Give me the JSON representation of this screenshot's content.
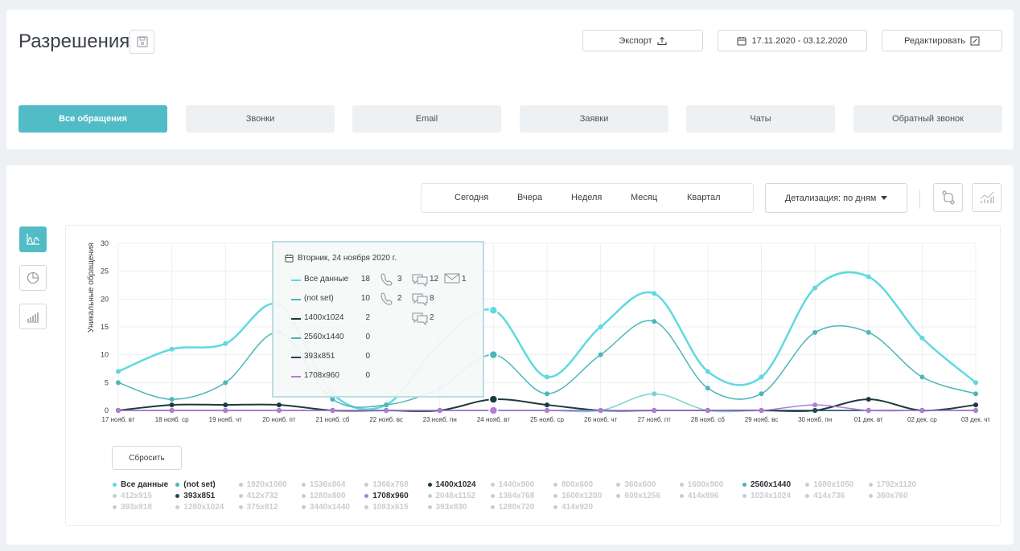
{
  "header": {
    "title": "Разрешения",
    "export_label": "Экспорт",
    "date_range": "17.11.2020 - 03.12.2020",
    "edit_label": "Редактировать"
  },
  "tabs": [
    {
      "label": "Все обращения",
      "active": true
    },
    {
      "label": "Звонки"
    },
    {
      "label": "Email"
    },
    {
      "label": "Заявки"
    },
    {
      "label": "Чаты"
    },
    {
      "label": "Обратный звонок"
    }
  ],
  "periods": [
    "Сегодня",
    "Вчера",
    "Неделя",
    "Месяц",
    "Квартал"
  ],
  "detail_dropdown": "Детализация: по дням",
  "reset_label": "Сбросить",
  "tooltip": {
    "date": "Вторник, 24 ноября 2020 г.",
    "rows": [
      {
        "label": "Все данные",
        "value": "18",
        "calls": "3",
        "chats": "12",
        "emails": "1",
        "color": "#5fd9e0"
      },
      {
        "label": "(not set)",
        "value": "10",
        "calls": "2",
        "chats": "8",
        "color": "#4cb6bb"
      },
      {
        "label": "1400x1024",
        "value": "2",
        "chats": "2",
        "color": "#1c3a40"
      },
      {
        "label": "2560x1440",
        "value": "0",
        "color": "#49b1b6"
      },
      {
        "label": "393x851",
        "value": "0",
        "color": "#1a4a55"
      },
      {
        "label": "1708x960",
        "value": "0",
        "color": "#b57ad9"
      }
    ]
  },
  "legend": [
    {
      "label": "Все данные",
      "active": true,
      "color": "#5fd9e0"
    },
    {
      "label": "(not set)",
      "active": true,
      "color": "#4cb6bb"
    },
    {
      "label": "1920x1080"
    },
    {
      "label": "1536x864"
    },
    {
      "label": "1366x768"
    },
    {
      "label": "1400x1024",
      "active": true,
      "color": "#1c3a40"
    },
    {
      "label": "1440x900"
    },
    {
      "label": "800x600"
    },
    {
      "label": "360x600"
    },
    {
      "label": "1600x900"
    },
    {
      "label": "2560x1440",
      "active": true,
      "color": "#49b1b6"
    },
    {
      "label": "1680x1050"
    },
    {
      "label": "1792x1120"
    },
    {
      "label": "412x915"
    },
    {
      "label": "393x851",
      "active": true,
      "color": "#1a4a55"
    },
    {
      "label": "412x732"
    },
    {
      "label": "1280x800"
    },
    {
      "label": "1708x960",
      "active": true,
      "color": "#b57ad9"
    },
    {
      "label": "2048x1152"
    },
    {
      "label": "1364x768"
    },
    {
      "label": "1600x1200"
    },
    {
      "label": "600x1256"
    },
    {
      "label": "414x896"
    },
    {
      "label": "1024x1024"
    },
    {
      "label": "414x736"
    },
    {
      "label": "360x760"
    },
    {
      "label": "393x818"
    },
    {
      "label": "1280x1024"
    },
    {
      "label": "375x812"
    },
    {
      "label": "3440x1440"
    },
    {
      "label": "1093x615"
    },
    {
      "label": "393x830"
    },
    {
      "label": "1280x720"
    },
    {
      "label": "414x920"
    }
  ],
  "chart_data": {
    "type": "line",
    "ylabel": "Уникальные обращения",
    "ylim": [
      0,
      30
    ],
    "yticks": [
      0,
      5,
      10,
      15,
      20,
      25,
      30
    ],
    "grid": true,
    "categories": [
      "17 нояб. вт",
      "18 нояб. ср",
      "19 нояб. чт",
      "20 нояб. пт",
      "21 нояб. сб",
      "22 нояб. вс",
      "23 нояб. пн",
      "24 нояб. вт",
      "25 нояб. ср",
      "26 нояб. чт",
      "27 нояб. пт",
      "28 нояб. сб",
      "29 нояб. вс",
      "30 нояб. пн",
      "01 дек. вт",
      "02 дек. ср",
      "03 дек. чт"
    ],
    "highlight_index": 7,
    "series": [
      {
        "name": "Все данные",
        "color": "#5fd9e0",
        "width": 2.5,
        "values": [
          7,
          11,
          12,
          19,
          3,
          1,
          12,
          18,
          6,
          15,
          21,
          7,
          6,
          22,
          24,
          13,
          5
        ]
      },
      {
        "name": "(not set)",
        "color": "#4cb6bb",
        "width": 1.5,
        "values": [
          5,
          2,
          5,
          14,
          2,
          1,
          4,
          10,
          3,
          10,
          16,
          4,
          3,
          14,
          14,
          6,
          3
        ]
      },
      {
        "name": "2560x1440",
        "color": "#7ccfd3",
        "width": 1.5,
        "values": [
          0,
          0,
          0,
          0,
          0,
          0,
          0,
          0,
          0,
          0,
          3,
          0,
          0,
          0,
          0,
          0,
          0
        ]
      },
      {
        "name": "1400x1024",
        "color": "#1c3a40",
        "width": 2,
        "values": [
          0,
          1,
          1,
          1,
          0,
          0,
          0,
          2,
          1,
          0,
          0,
          0,
          0,
          0,
          2,
          0,
          1
        ]
      },
      {
        "name": "393x851",
        "color": "#1a4a55",
        "width": 1.5,
        "values": [
          0,
          0,
          0,
          0,
          0,
          0,
          0,
          0,
          0,
          0,
          0,
          0,
          0,
          0,
          0,
          0,
          0
        ]
      },
      {
        "name": "1708x960",
        "color": "#b57ad9",
        "width": 1.5,
        "values": [
          0,
          0,
          0,
          0,
          0,
          0,
          0,
          0,
          0,
          0,
          0,
          0,
          0,
          1,
          0,
          0,
          0
        ]
      }
    ]
  }
}
